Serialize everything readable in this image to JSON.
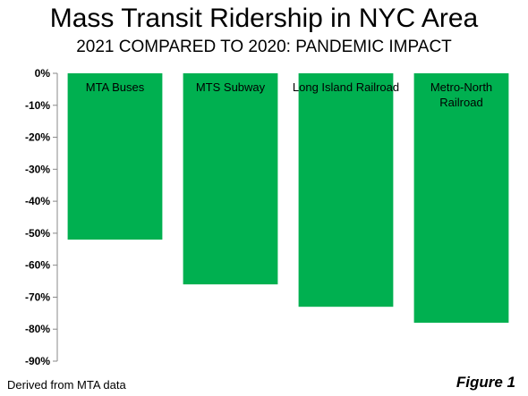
{
  "chart_data": {
    "type": "bar",
    "title": "Mass Transit Ridership in NYC Area",
    "subtitle": "2021 COMPARED TO 2020: PANDEMIC IMPACT",
    "categories": [
      "MTA Buses",
      "MTS Subway",
      "Long Island Railroad",
      "Metro-North Railroad"
    ],
    "category_label_lines": [
      [
        "MTA Buses"
      ],
      [
        "MTS Subway"
      ],
      [
        "Long Island Railroad"
      ],
      [
        "Metro-North",
        "Railroad"
      ]
    ],
    "values": [
      -52,
      -66,
      -73,
      -78
    ],
    "ylim": [
      -90,
      0
    ],
    "yticks": [
      0,
      -10,
      -20,
      -30,
      -40,
      -50,
      -60,
      -70,
      -80,
      -90
    ],
    "ytick_labels": [
      "0%",
      "-10%",
      "-20%",
      "-30%",
      "-40%",
      "-50%",
      "-60%",
      "-70%",
      "-80%",
      "-90%"
    ],
    "xlabel": "",
    "ylabel": "",
    "bar_color": "#00b050",
    "grid": false
  },
  "footer": {
    "source": "Derived from MTA data",
    "figure_label": "Figure 1"
  }
}
